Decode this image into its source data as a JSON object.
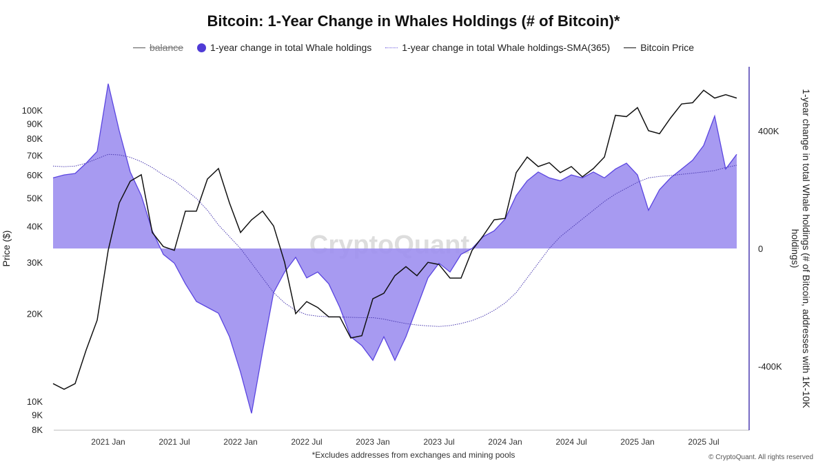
{
  "chart_data": {
    "type": "line",
    "title": "Bitcoin: 1-Year Change in Whales Holdings (# of Bitcoin)*",
    "legend": [
      "balance",
      "1-year change in total Whale holdings",
      "1-year change in total Whale holdings-SMA(365)",
      "Bitcoin Price"
    ],
    "legend_placement": "top",
    "ylabel_left": "Price ($)",
    "ylabel_right": "1-year change in total Whale holdings (# of Bitcoin, addresses with 1K-10K holdings)",
    "left_scale": "log",
    "left_ticks": [
      "8K",
      "9K",
      "10K",
      "20K",
      "30K",
      "40K",
      "50K",
      "60K",
      "70K",
      "80K",
      "90K",
      "100K"
    ],
    "left_tick_values": [
      8000,
      9000,
      10000,
      20000,
      30000,
      40000,
      50000,
      60000,
      70000,
      80000,
      90000,
      100000
    ],
    "right_ticks": [
      "-400K",
      "0",
      "400K"
    ],
    "right_tick_values": [
      -400000,
      0,
      400000
    ],
    "x_ticks": [
      "2021 Jan",
      "2021 Jul",
      "2022 Jan",
      "2022 Jul",
      "2023 Jan",
      "2023 Jul",
      "2024 Jan",
      "2024 Jul",
      "2025 Jan",
      "2025 Jul"
    ],
    "x_tick_dates": [
      "2021-01",
      "2021-07",
      "2022-01",
      "2022-07",
      "2023-01",
      "2023-07",
      "2024-01",
      "2024-07",
      "2025-01",
      "2025-07"
    ],
    "xlim": [
      "2020-08",
      "2025-10"
    ],
    "colors": {
      "whale_fill": "#9d8ff0",
      "whale_line": "#5a45e0",
      "sma": "#4b3bb0",
      "price": "#111111",
      "legend_dot": "#4f3bd6"
    },
    "x": [
      "2020-08",
      "2020-09",
      "2020-10",
      "2020-11",
      "2020-12",
      "2021-01",
      "2021-02",
      "2021-03",
      "2021-04",
      "2021-05",
      "2021-06",
      "2021-07",
      "2021-08",
      "2021-09",
      "2021-10",
      "2021-11",
      "2021-12",
      "2022-01",
      "2022-02",
      "2022-03",
      "2022-04",
      "2022-05",
      "2022-06",
      "2022-07",
      "2022-08",
      "2022-09",
      "2022-10",
      "2022-11",
      "2022-12",
      "2023-01",
      "2023-02",
      "2023-03",
      "2023-04",
      "2023-05",
      "2023-06",
      "2023-07",
      "2023-08",
      "2023-09",
      "2023-10",
      "2023-11",
      "2023-12",
      "2024-01",
      "2024-02",
      "2024-03",
      "2024-04",
      "2024-05",
      "2024-06",
      "2024-07",
      "2024-08",
      "2024-09",
      "2024-10",
      "2024-11",
      "2024-12",
      "2025-01",
      "2025-02",
      "2025-03",
      "2025-04",
      "2025-05",
      "2025-06",
      "2025-07",
      "2025-08",
      "2025-09",
      "2025-10"
    ],
    "series": [
      {
        "name": "Bitcoin Price",
        "axis": "left",
        "values": [
          11500,
          11000,
          11500,
          15000,
          19000,
          33000,
          48000,
          57000,
          60000,
          38000,
          34000,
          33000,
          45000,
          45000,
          58000,
          63000,
          48000,
          38000,
          42000,
          45000,
          40000,
          30000,
          20000,
          22000,
          21000,
          19500,
          19500,
          16500,
          16800,
          22500,
          23500,
          27000,
          29000,
          27000,
          30000,
          29500,
          26500,
          26500,
          33000,
          37000,
          42000,
          42500,
          61000,
          69000,
          64000,
          66000,
          61000,
          64000,
          59000,
          63000,
          69000,
          96000,
          95000,
          102000,
          85000,
          83000,
          94000,
          105000,
          106000,
          117000,
          110000,
          113000,
          110000
        ]
      },
      {
        "name": "1-year change in total Whale holdings",
        "axis": "right",
        "values": [
          240000,
          250000,
          255000,
          290000,
          330000,
          560000,
          400000,
          260000,
          180000,
          60000,
          -20000,
          -50000,
          -120000,
          -180000,
          -200000,
          -220000,
          -300000,
          -420000,
          -560000,
          -350000,
          -150000,
          -80000,
          -30000,
          -100000,
          -80000,
          -120000,
          -200000,
          -300000,
          -330000,
          -380000,
          -300000,
          -380000,
          -300000,
          -200000,
          -100000,
          -50000,
          -80000,
          -20000,
          0,
          40000,
          60000,
          100000,
          180000,
          230000,
          260000,
          240000,
          230000,
          250000,
          240000,
          260000,
          240000,
          270000,
          290000,
          250000,
          130000,
          200000,
          240000,
          270000,
          300000,
          350000,
          450000,
          270000,
          320000
        ]
      },
      {
        "name": "1-year change in total Whale holdings-SMA(365)",
        "axis": "right",
        "values": [
          280000,
          278000,
          280000,
          290000,
          305000,
          320000,
          318000,
          310000,
          295000,
          275000,
          250000,
          230000,
          200000,
          170000,
          130000,
          80000,
          40000,
          0,
          -50000,
          -100000,
          -150000,
          -185000,
          -210000,
          -225000,
          -230000,
          -232000,
          -233000,
          -234000,
          -235000,
          -235000,
          -240000,
          -248000,
          -255000,
          -260000,
          -263000,
          -265000,
          -262000,
          -255000,
          -245000,
          -230000,
          -210000,
          -185000,
          -150000,
          -100000,
          -50000,
          0,
          40000,
          70000,
          100000,
          130000,
          160000,
          185000,
          205000,
          225000,
          240000,
          245000,
          248000,
          252000,
          256000,
          260000,
          265000,
          275000,
          283000
        ]
      }
    ]
  },
  "watermark": "CryptoQuant",
  "footnote": "*Excludes addresses from exchanges and mining pools",
  "copyright": "© CryptoQuant. All rights reserved"
}
